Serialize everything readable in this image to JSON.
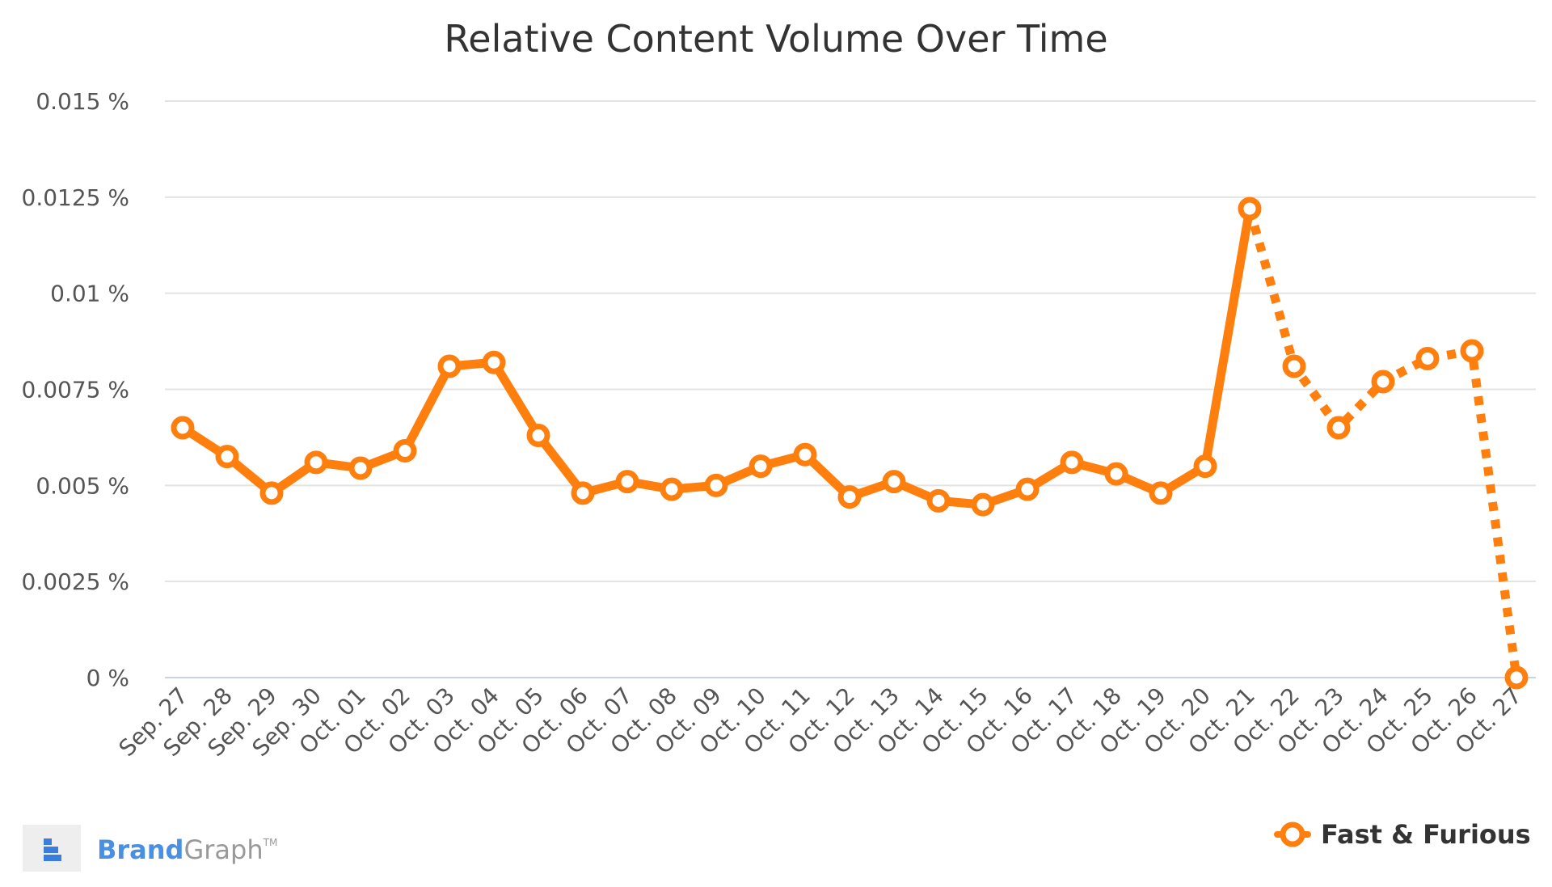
{
  "chart_data": {
    "type": "line",
    "title": "Relative Content Volume Over Time",
    "xlabel": "",
    "ylabel": "",
    "categories": [
      "Sep. 27",
      "Sep. 28",
      "Sep. 29",
      "Sep. 30",
      "Oct. 01",
      "Oct. 02",
      "Oct. 03",
      "Oct. 04",
      "Oct. 05",
      "Oct. 06",
      "Oct. 07",
      "Oct. 08",
      "Oct. 09",
      "Oct. 10",
      "Oct. 11",
      "Oct. 12",
      "Oct. 13",
      "Oct. 14",
      "Oct. 15",
      "Oct. 16",
      "Oct. 17",
      "Oct. 18",
      "Oct. 19",
      "Oct. 20",
      "Oct. 21",
      "Oct. 22",
      "Oct. 23",
      "Oct. 24",
      "Oct. 25",
      "Oct. 26",
      "Oct. 27"
    ],
    "series": [
      {
        "name": "Fast & Furious",
        "color": "#ff7f0e",
        "values": [
          0.0065,
          0.00575,
          0.0048,
          0.0056,
          0.00545,
          0.0059,
          0.0081,
          0.0082,
          0.0063,
          0.0048,
          0.0051,
          0.0049,
          0.005,
          0.0055,
          0.0058,
          0.0047,
          0.0051,
          0.0046,
          0.0045,
          0.0049,
          0.0056,
          0.0053,
          0.0048,
          0.0055,
          0.0122,
          0.0081,
          0.0065,
          0.0077,
          0.0083,
          0.0085,
          0.0
        ],
        "dashed_from": "Oct. 21"
      }
    ],
    "ylim": [
      0,
      0.015
    ],
    "yticks": [
      0,
      0.0025,
      0.005,
      0.0075,
      0.01,
      0.0125,
      0.015
    ],
    "ytick_labels": [
      "0 %",
      "0.0025 %",
      "0.005 %",
      "0.0075 %",
      "0.01 %",
      "0.0125 %",
      "0.015 %"
    ],
    "grid": true,
    "legend": "bottom-right"
  },
  "branding": {
    "logo_icon": "brandgraph-logo-icon",
    "brand_part": "Brand",
    "graph_part": "Graph",
    "tm": "TM"
  }
}
